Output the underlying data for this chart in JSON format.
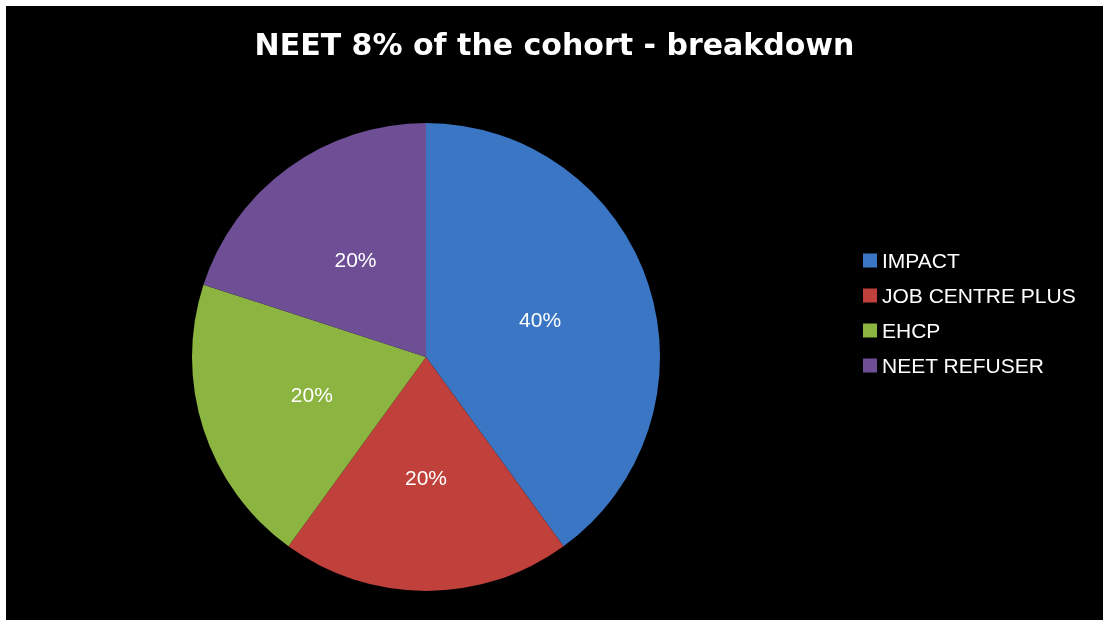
{
  "chart_data": {
    "type": "pie",
    "title": "NEET 8% of the cohort - breakdown",
    "categories": [
      "IMPACT",
      "JOB CENTRE PLUS",
      "EHCP",
      "NEET REFUSER"
    ],
    "values": [
      40,
      20,
      20,
      20
    ],
    "colors": [
      "#3a76c3",
      "#c0403b",
      "#8cb440",
      "#6e4f96"
    ],
    "value_labels": [
      "40%",
      "20%",
      "20%",
      "20%"
    ],
    "legend": "right"
  }
}
